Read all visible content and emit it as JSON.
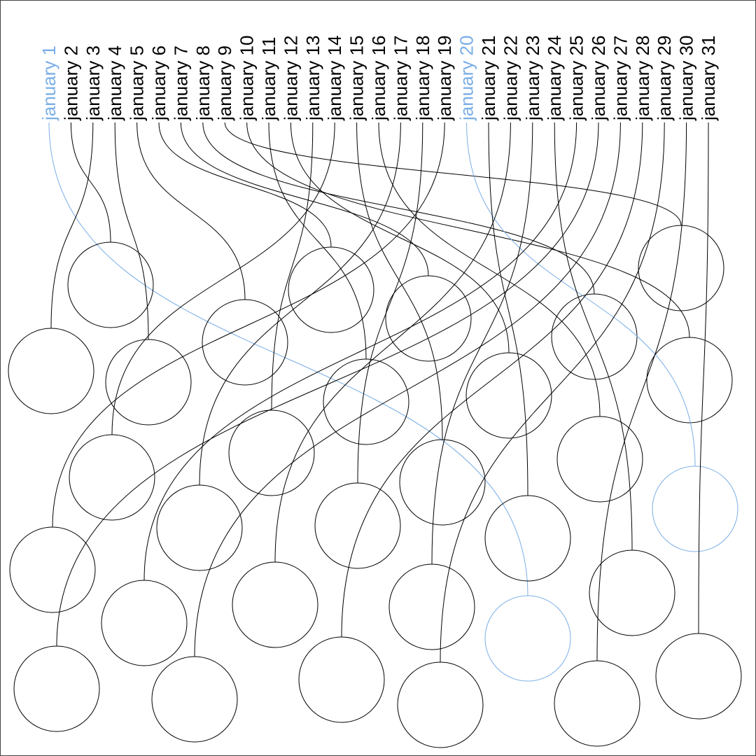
{
  "items": [
    {
      "label": "january 1",
      "highlighted": true
    },
    {
      "label": "january 2",
      "highlighted": false
    },
    {
      "label": "january 3",
      "highlighted": false
    },
    {
      "label": "january 4",
      "highlighted": false
    },
    {
      "label": "january 5",
      "highlighted": false
    },
    {
      "label": "january 6",
      "highlighted": false
    },
    {
      "label": "january 7",
      "highlighted": false
    },
    {
      "label": "january 8",
      "highlighted": false
    },
    {
      "label": "january 9",
      "highlighted": false
    },
    {
      "label": "january 10",
      "highlighted": false
    },
    {
      "label": "january 11",
      "highlighted": false
    },
    {
      "label": "january 12",
      "highlighted": false
    },
    {
      "label": "january 13",
      "highlighted": false
    },
    {
      "label": "january 14",
      "highlighted": false
    },
    {
      "label": "january 15",
      "highlighted": false
    },
    {
      "label": "january 16",
      "highlighted": false
    },
    {
      "label": "january 17",
      "highlighted": false
    },
    {
      "label": "january 18",
      "highlighted": false
    },
    {
      "label": "january 19",
      "highlighted": false
    },
    {
      "label": "january 20",
      "highlighted": true
    },
    {
      "label": "january 21",
      "highlighted": false
    },
    {
      "label": "january 22",
      "highlighted": false
    },
    {
      "label": "january 23",
      "highlighted": false
    },
    {
      "label": "january 24",
      "highlighted": false
    },
    {
      "label": "january 25",
      "highlighted": false
    },
    {
      "label": "january 26",
      "highlighted": false
    },
    {
      "label": "january 27",
      "highlighted": false
    },
    {
      "label": "january 28",
      "highlighted": false
    },
    {
      "label": "january 29",
      "highlighted": false
    },
    {
      "label": "january 30",
      "highlighted": false
    },
    {
      "label": "january 31",
      "highlighted": false
    }
  ]
}
